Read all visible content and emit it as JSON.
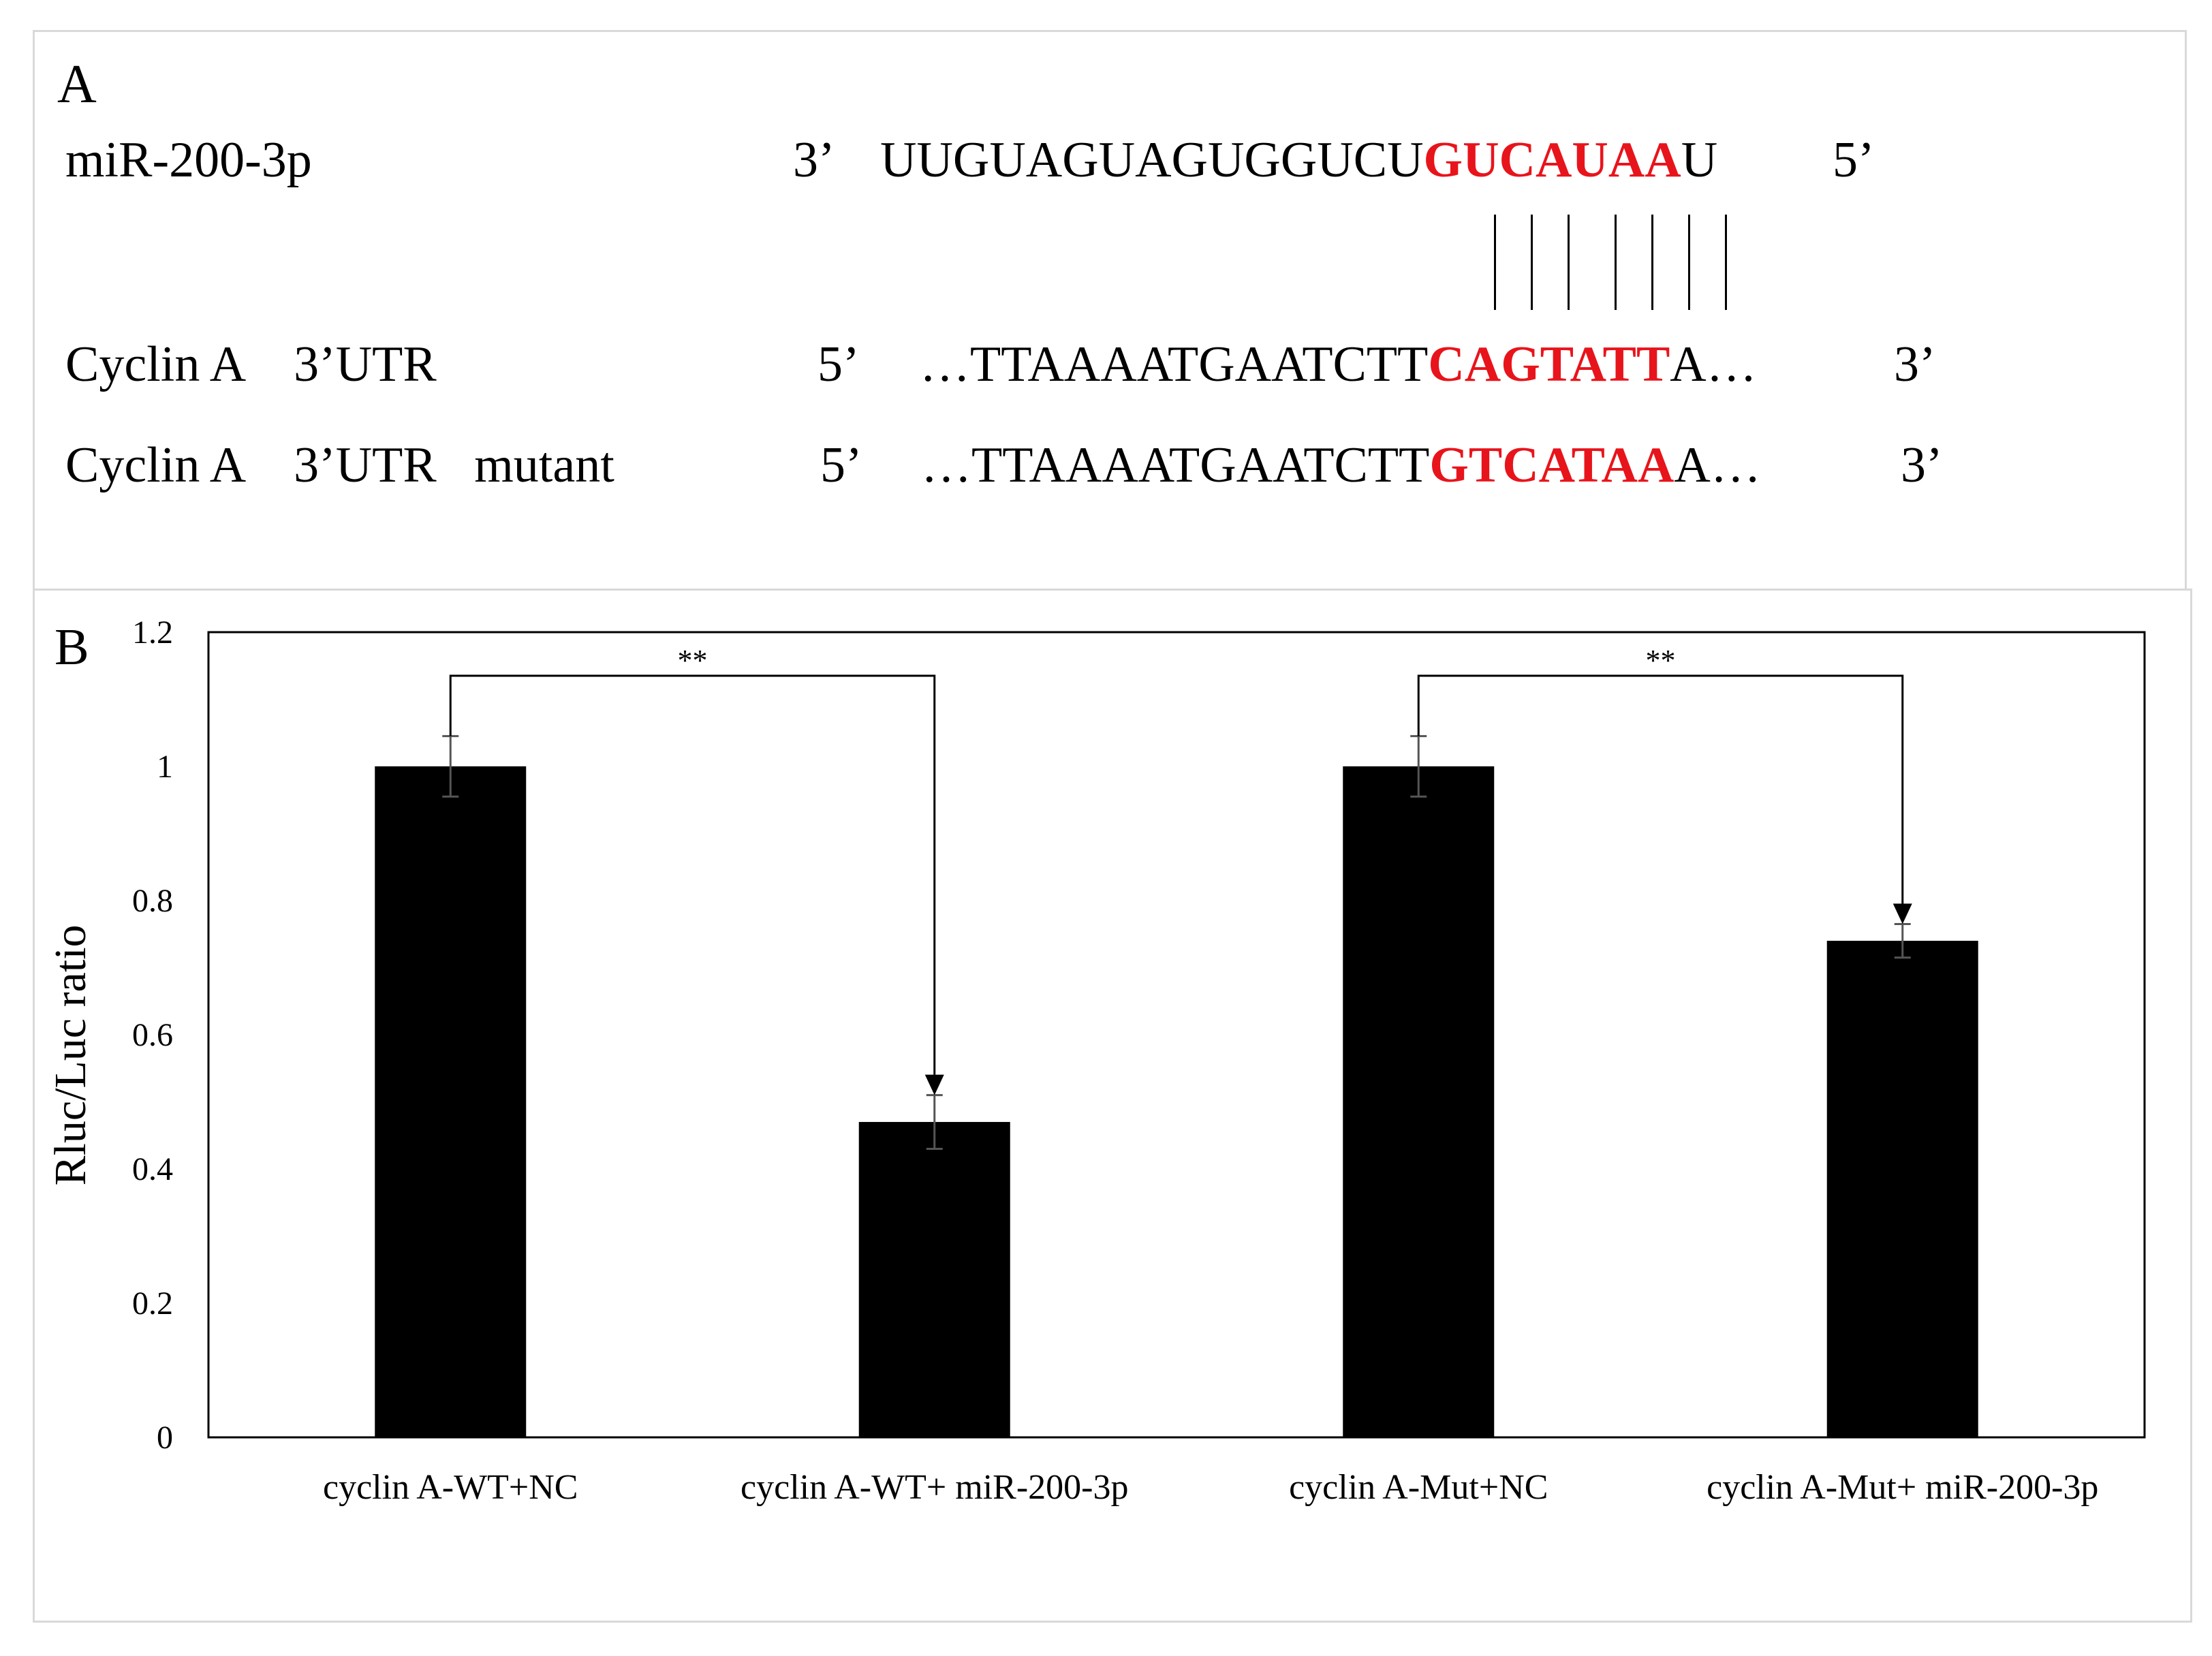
{
  "panel_a": {
    "label": "A",
    "rows": [
      {
        "name": "miR-200-3p",
        "end_left": "3’",
        "seq_pre": "UUGUAGUAGUGGUCU",
        "seq_seed": "GUCAUAA",
        "seq_post": "U",
        "end_right": "5’"
      },
      {
        "name": "Cyclin A    3’UTR",
        "end_left": "5’",
        "seq_pre": "…TTAAAATGAATCTT",
        "seq_seed": "CAGTATT",
        "seq_post": "A…",
        "end_right": "3’"
      },
      {
        "name": "Cyclin A    3’UTR   mutant",
        "end_left": "5’",
        "seq_pre": "…TTAAAATGAATCTT",
        "seq_seed": "GTCATAA",
        "seq_post": "A…",
        "end_right": "3’"
      }
    ],
    "seed_color": "#e8141b",
    "pairing_lines": 7
  },
  "chart_data": {
    "panel_label": "B",
    "type": "bar",
    "categories": [
      "cyclin A-WT+NC",
      "cyclin A-WT+ miR-200-3p",
      "cyclin A-Mut+NC",
      "cyclin A-Mut+ miR-200-3p"
    ],
    "values": [
      1.0,
      0.47,
      1.0,
      0.74
    ],
    "errors": [
      0.045,
      0.04,
      0.045,
      0.025
    ],
    "ylabel": "Rluc/Luc ratio",
    "xlabel": "",
    "ylim": [
      0,
      1.2
    ],
    "yticks": [
      0,
      0.2,
      0.4,
      0.6,
      0.8,
      1,
      1.2
    ],
    "ytick_labels": [
      "0",
      "0.2",
      "0.4",
      "0.6",
      "0.8",
      "1",
      "1.2"
    ],
    "bar_color": "#000000",
    "grid": false,
    "annotations": [
      {
        "from": 0,
        "to": 1,
        "text": "**"
      },
      {
        "from": 2,
        "to": 3,
        "text": "**"
      }
    ]
  }
}
